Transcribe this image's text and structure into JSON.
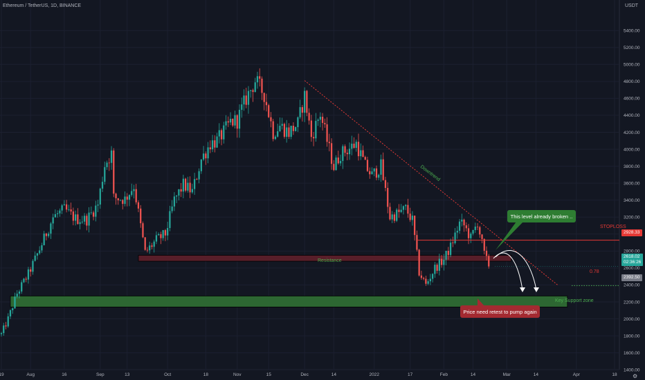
{
  "header": {
    "symbol_title": "Ethereum / TetherUS, 1D, BINANCE",
    "currency": "USDT"
  },
  "chart_data": {
    "type": "candlestick",
    "y_axis": {
      "range": [
        1320,
        5760
      ],
      "ticks": [
        "5400.00",
        "5200.00",
        "5000.00",
        "4800.00",
        "4600.00",
        "4400.00",
        "4200.00",
        "4000.00",
        "3800.00",
        "3600.00",
        "3400.00",
        "3200.00",
        "3000.00",
        "2800.00",
        "2600.00",
        "2400.00",
        "2200.00",
        "2000.00",
        "1800.00",
        "1600.00",
        "1400.00"
      ]
    },
    "x_axis": {
      "range": [
        "2021-07-19",
        "2022-04-18"
      ],
      "ticks": [
        {
          "label": "19",
          "date": "2021-07-19"
        },
        {
          "label": "Aug",
          "date": "2021-08-01"
        },
        {
          "label": "16",
          "date": "2021-08-16"
        },
        {
          "label": "Sep",
          "date": "2021-09-01"
        },
        {
          "label": "13",
          "date": "2021-09-13"
        },
        {
          "label": "Oct",
          "date": "2021-10-01"
        },
        {
          "label": "18",
          "date": "2021-10-18"
        },
        {
          "label": "Nov",
          "date": "2021-11-01"
        },
        {
          "label": "15",
          "date": "2021-11-15"
        },
        {
          "label": "Dec",
          "date": "2021-12-01"
        },
        {
          "label": "14",
          "date": "2021-12-14"
        },
        {
          "label": "2022",
          "date": "2022-01-01"
        },
        {
          "label": "17",
          "date": "2022-01-17"
        },
        {
          "label": "Feb",
          "date": "2022-02-01"
        },
        {
          "label": "14",
          "date": "2022-02-14"
        },
        {
          "label": "Mar",
          "date": "2022-03-01"
        },
        {
          "label": "14",
          "date": "2022-03-14"
        },
        {
          "label": "Apr",
          "date": "2022-04-01"
        },
        {
          "label": "18",
          "date": "2022-04-18"
        }
      ]
    },
    "price_path": [
      [
        "2021-07-19",
        1820
      ],
      [
        "2021-07-22",
        2000
      ],
      [
        "2021-07-26",
        2300
      ],
      [
        "2021-07-31",
        2530
      ],
      [
        "2021-08-05",
        2820
      ],
      [
        "2021-08-11",
        3200
      ],
      [
        "2021-08-16",
        3290
      ],
      [
        "2021-08-21",
        3180
      ],
      [
        "2021-08-26",
        3170
      ],
      [
        "2021-08-31",
        3350
      ],
      [
        "2021-09-03",
        3820
      ],
      [
        "2021-09-06",
        3950
      ],
      [
        "2021-09-07",
        3430
      ],
      [
        "2021-09-12",
        3410
      ],
      [
        "2021-09-16",
        3570
      ],
      [
        "2021-09-21",
        2780
      ],
      [
        "2021-09-26",
        2930
      ],
      [
        "2021-09-30",
        3000
      ],
      [
        "2021-10-04",
        3400
      ],
      [
        "2021-10-08",
        3580
      ],
      [
        "2021-10-12",
        3500
      ],
      [
        "2021-10-16",
        3880
      ],
      [
        "2021-10-20",
        4070
      ],
      [
        "2021-10-23",
        4100
      ],
      [
        "2021-10-26",
        4200
      ],
      [
        "2021-10-29",
        4320
      ],
      [
        "2021-11-01",
        4340
      ],
      [
        "2021-11-05",
        4600
      ],
      [
        "2021-11-09",
        4810
      ],
      [
        "2021-11-13",
        4650
      ],
      [
        "2021-11-17",
        4200
      ],
      [
        "2021-11-20",
        4280
      ],
      [
        "2021-11-24",
        4200
      ],
      [
        "2021-11-28",
        4300
      ],
      [
        "2021-12-01",
        4630
      ],
      [
        "2021-12-04",
        4150
      ],
      [
        "2021-12-08",
        4420
      ],
      [
        "2021-12-11",
        4100
      ],
      [
        "2021-12-14",
        3790
      ],
      [
        "2021-12-17",
        3950
      ],
      [
        "2021-12-21",
        4010
      ],
      [
        "2021-12-24",
        4070
      ],
      [
        "2021-12-28",
        3800
      ],
      [
        "2021-12-31",
        3690
      ],
      [
        "2022-01-04",
        3800
      ],
      [
        "2022-01-08",
        3200
      ],
      [
        "2022-01-12",
        3250
      ],
      [
        "2022-01-15",
        3300
      ],
      [
        "2022-01-18",
        3160
      ],
      [
        "2022-01-21",
        2550
      ],
      [
        "2022-01-24",
        2400
      ],
      [
        "2022-01-28",
        2600
      ],
      [
        "2022-02-01",
        2700
      ],
      [
        "2022-02-04",
        2850
      ],
      [
        "2022-02-08",
        3130
      ],
      [
        "2022-02-10",
        3100
      ],
      [
        "2022-02-13",
        2950
      ],
      [
        "2022-02-16",
        3140
      ],
      [
        "2022-02-19",
        2760
      ],
      [
        "2022-02-21",
        2618
      ]
    ],
    "current_price": 2618.02,
    "annotations": {
      "downtrend": {
        "label": "Downtrend",
        "from": [
          "2021-12-01",
          4810
        ],
        "to": [
          "2022-03-24",
          2392
        ]
      },
      "stoploss": {
        "label": "STOPLOSS",
        "price": 2928.33,
        "from": "2022-01-20"
      },
      "resistance_zone": {
        "label": "Resistance",
        "range": [
          2680,
          2750
        ],
        "from": "2021-09-18",
        "to": "2022-03-03"
      },
      "key_support_zone": {
        "label": "Key Support zone",
        "range": [
          2140,
          2270
        ],
        "from": "2021-07-23",
        "to": "2022-03-28"
      },
      "fib_level": {
        "label": "0.78",
        "price": 2392.5
      },
      "callout_broken": "This level already broken ..",
      "callout_retest": "Price need retest to pump again"
    }
  },
  "price_tags": {
    "stoploss": "2928.33",
    "current": "2618.02",
    "timer": "02:36:26",
    "fib": "2392.50"
  },
  "colors": {
    "background": "#131722",
    "bull": "#26a69a",
    "bear": "#ef5350",
    "resistance": "#5c1f2a",
    "support": "#2e6b34",
    "stoploss": "#e53935"
  }
}
